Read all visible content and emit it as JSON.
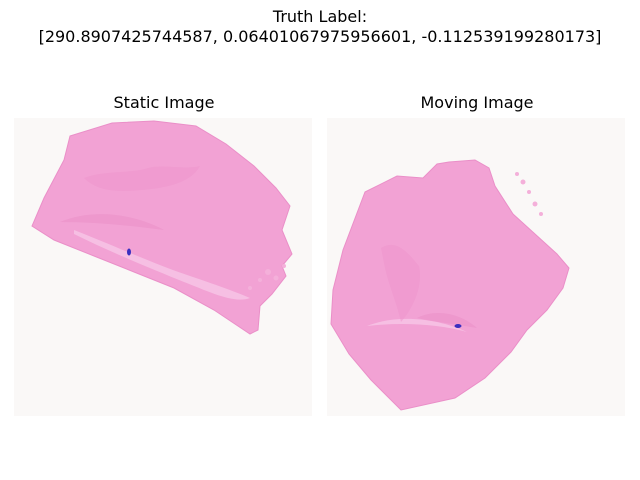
{
  "figure": {
    "title_line1": "Truth Label:",
    "title_line2": "[290.8907425744587, 0.06401067975956601, -0.112539199280173]"
  },
  "panels": {
    "static": {
      "title": "Static Image"
    },
    "moving": {
      "title": "Moving Image"
    }
  },
  "colors": {
    "background": "#faf8f7",
    "tissue": "#f29fd2",
    "tissue_light": "#f6bde3",
    "tissue_dark": "#e98bc6",
    "ink_mark": "#3a2fc0"
  }
}
